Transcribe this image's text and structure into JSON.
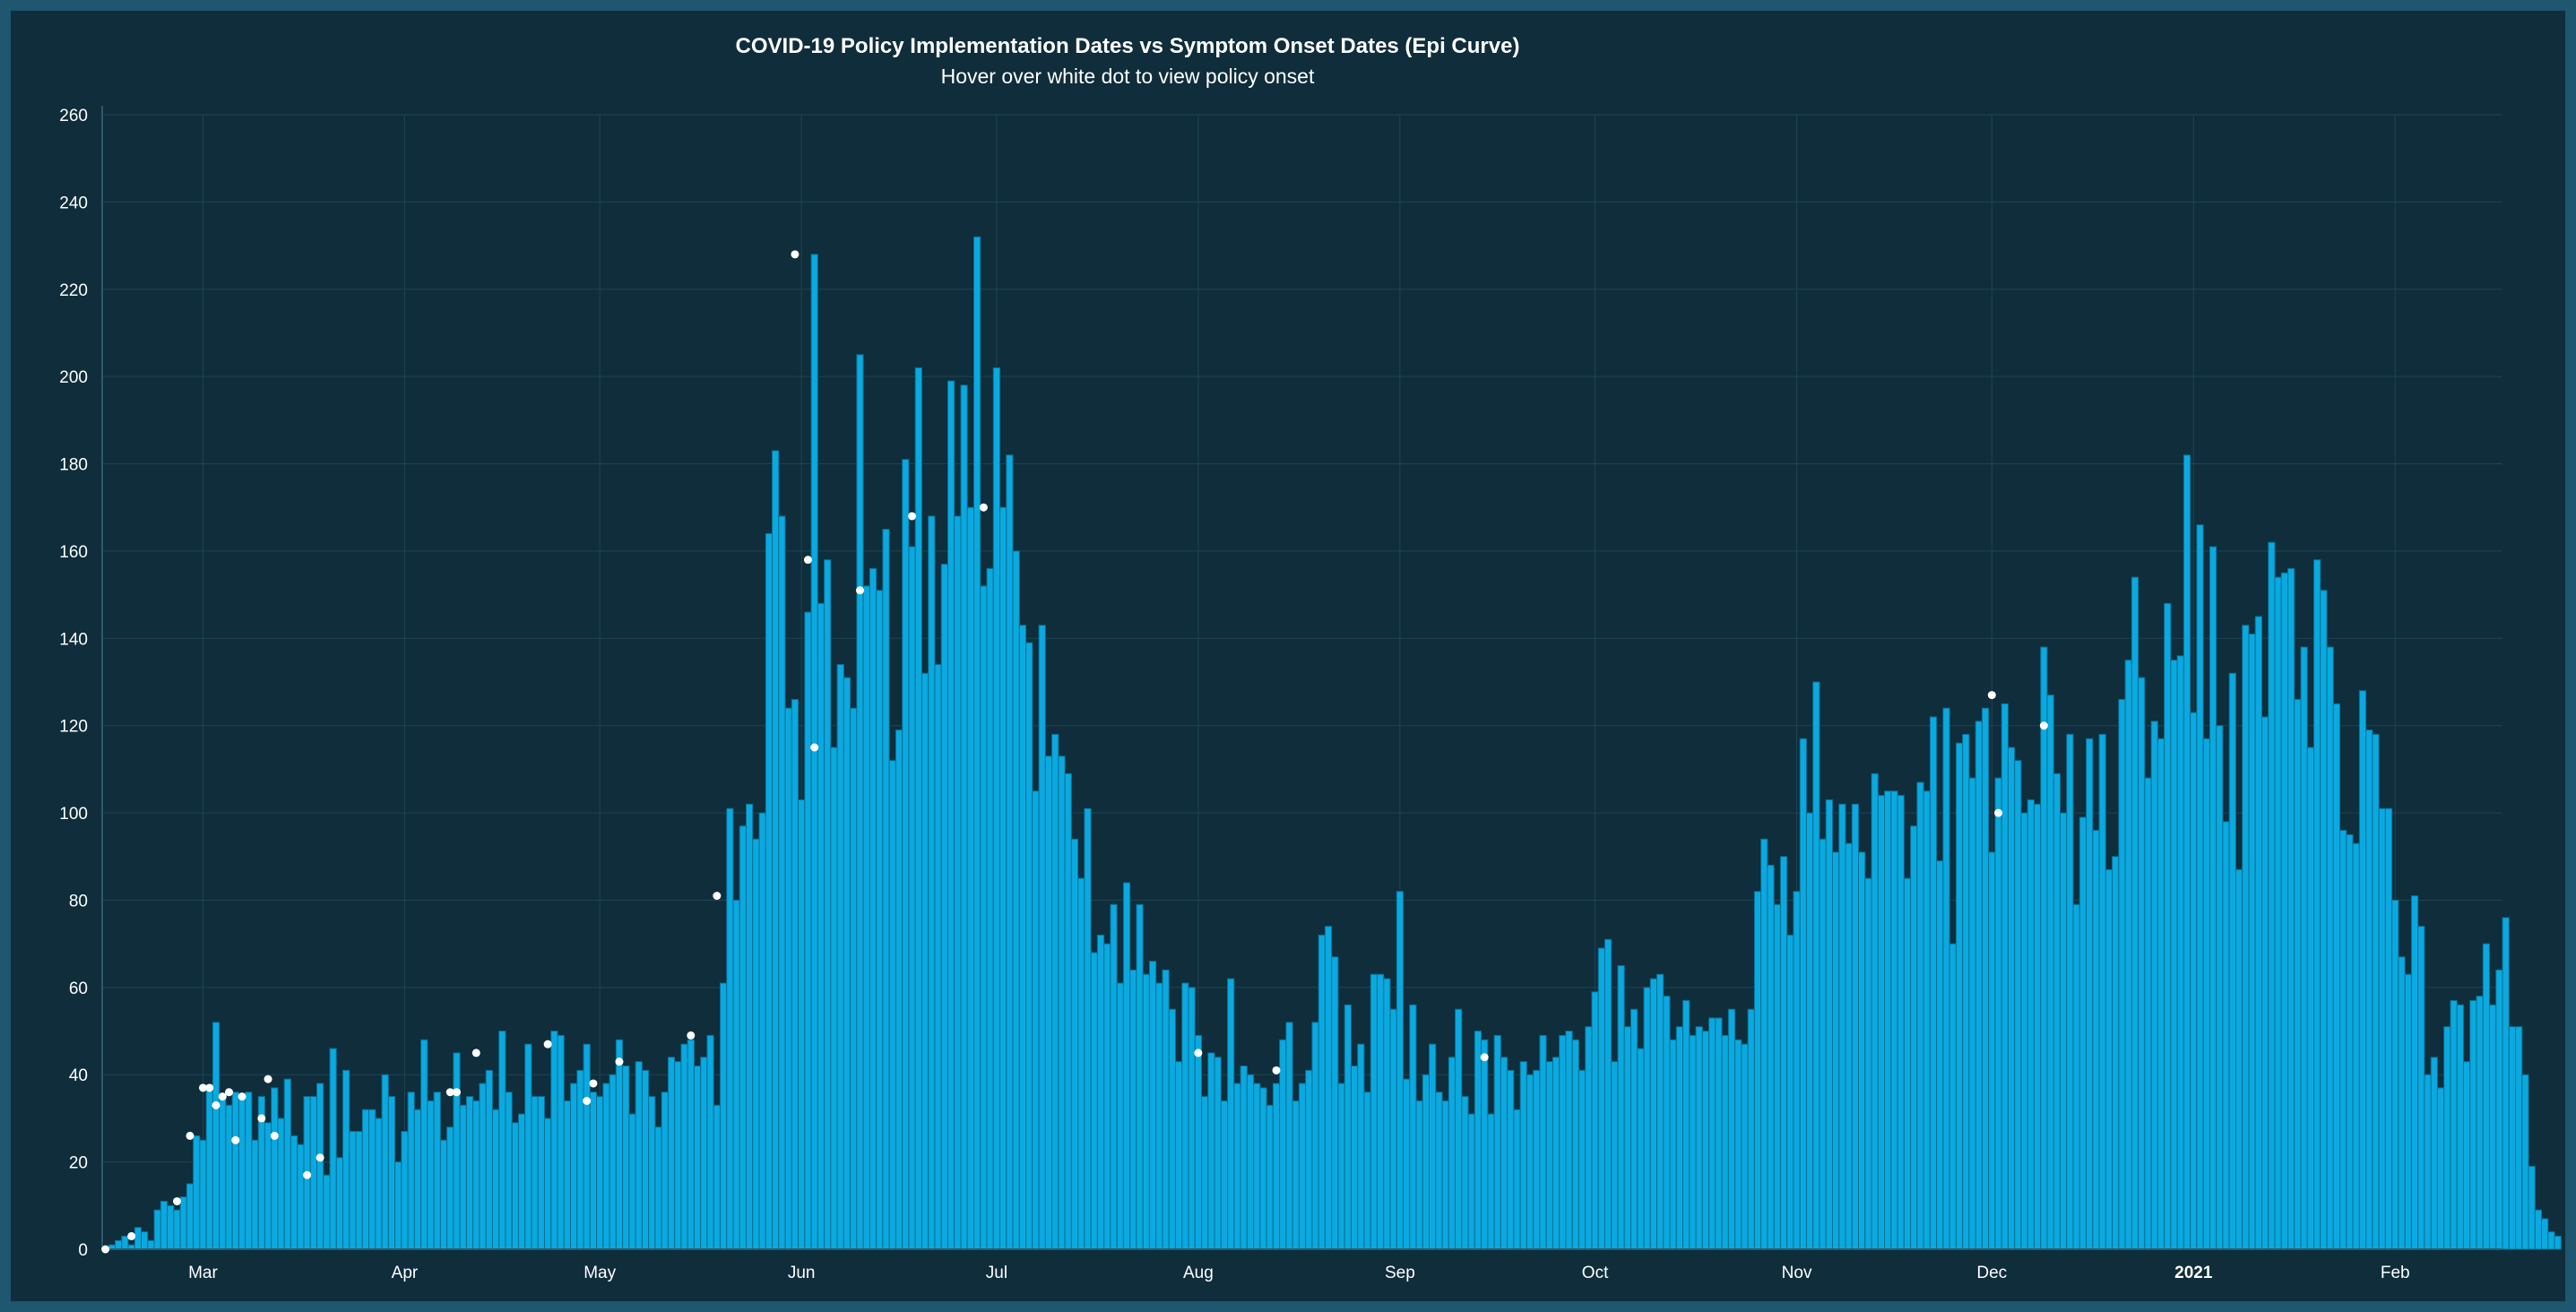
{
  "chart_data": {
    "type": "bar",
    "title": "COVID-19 Policy Implementation Dates vs Symptom Onset Dates (Epi Curve)",
    "subtitle": "Hover over white dot to view policy onset",
    "xlabel": "",
    "ylabel": "",
    "ylim": [
      0,
      260
    ],
    "yticks": [
      0,
      20,
      40,
      60,
      80,
      100,
      120,
      140,
      160,
      180,
      200,
      220,
      240,
      260
    ],
    "grid": true,
    "legend": "none",
    "x_start": "2020-02-15",
    "x_end": "2021-02-18",
    "x_tick_labels": [
      {
        "date": "2020-03-01",
        "label": "Mar",
        "bold": false
      },
      {
        "date": "2020-04-01",
        "label": "Apr",
        "bold": false
      },
      {
        "date": "2020-05-01",
        "label": "May",
        "bold": false
      },
      {
        "date": "2020-06-01",
        "label": "Jun",
        "bold": false
      },
      {
        "date": "2020-07-01",
        "label": "Jul",
        "bold": false
      },
      {
        "date": "2020-08-01",
        "label": "Aug",
        "bold": false
      },
      {
        "date": "2020-09-01",
        "label": "Sep",
        "bold": false
      },
      {
        "date": "2020-10-01",
        "label": "Oct",
        "bold": false
      },
      {
        "date": "2020-11-01",
        "label": "Nov",
        "bold": false
      },
      {
        "date": "2020-12-01",
        "label": "Dec",
        "bold": false
      },
      {
        "date": "2021-01-01",
        "label": "2021",
        "bold": true
      },
      {
        "date": "2021-02-01",
        "label": "Feb",
        "bold": false
      }
    ],
    "bar_color": "#0aa9df",
    "bar_edge_color": "#0a6f95",
    "dot_color": "#ffffff",
    "series": [
      {
        "values": [
          0,
          1,
          2,
          3,
          1,
          5,
          4,
          2,
          9,
          11,
          10,
          9,
          12,
          15,
          26,
          25,
          37,
          52,
          35,
          33,
          36,
          35,
          36,
          25,
          35,
          29,
          37,
          30,
          39,
          26,
          24,
          35,
          35,
          38,
          17,
          46,
          21,
          41,
          27,
          27,
          32,
          32,
          30,
          40,
          35,
          20,
          27,
          36,
          32,
          48,
          34,
          36,
          25,
          28,
          45,
          33,
          35,
          34,
          38,
          41,
          32,
          50,
          36,
          29,
          31,
          47,
          35,
          35,
          30,
          50,
          49,
          34,
          38,
          41,
          47,
          36,
          35,
          38,
          40,
          48,
          42,
          31,
          43,
          41,
          35,
          28,
          36,
          44,
          43,
          47,
          48,
          42,
          44,
          49,
          33,
          61,
          101,
          80,
          97,
          102,
          94,
          100,
          164,
          183,
          168,
          124,
          126,
          103,
          146,
          228,
          148,
          158,
          115,
          134,
          131,
          124,
          205,
          152,
          156,
          151,
          165,
          112,
          119,
          181,
          161,
          202,
          132,
          168,
          134,
          157,
          199,
          168,
          198,
          170,
          232,
          152,
          156,
          202,
          170,
          182,
          160,
          143,
          139,
          105,
          143,
          113,
          118,
          113,
          109,
          94,
          85,
          101,
          68,
          72,
          70,
          79,
          61,
          84,
          64,
          79,
          63,
          66,
          61,
          64,
          55,
          43,
          61,
          60,
          49,
          35,
          45,
          44,
          34,
          62,
          38,
          42,
          40,
          38,
          37,
          33,
          38,
          48,
          52,
          34,
          38,
          41,
          52,
          72,
          74,
          67,
          38,
          56,
          42,
          47,
          36,
          63,
          63,
          62,
          55,
          82,
          39,
          56,
          34,
          40,
          47,
          36,
          34,
          44,
          55,
          35,
          31,
          50,
          48,
          31,
          49,
          44,
          41,
          32,
          43,
          40,
          41,
          49,
          43,
          44,
          49,
          50,
          48,
          41,
          51,
          59,
          69,
          71,
          43,
          65,
          51,
          55,
          46,
          60,
          62,
          63,
          58,
          48,
          51,
          57,
          49,
          51,
          50,
          53,
          53,
          49,
          55,
          48,
          47,
          55,
          82,
          94,
          88,
          79,
          90,
          72,
          82,
          117,
          100,
          130,
          94,
          103,
          91,
          102,
          93,
          102,
          91,
          85,
          109,
          104,
          105,
          105,
          104,
          85,
          97,
          107,
          105,
          122,
          89,
          124,
          70,
          116,
          118,
          108,
          121,
          124,
          91,
          108,
          125,
          115,
          112,
          100,
          103,
          102,
          138,
          127,
          109,
          100,
          118,
          79,
          99,
          117,
          96,
          118,
          87,
          90,
          126,
          135,
          154,
          131,
          108,
          121,
          117,
          148,
          135,
          136,
          182,
          123,
          166,
          117,
          161,
          120,
          98,
          132,
          87,
          143,
          141,
          145,
          122,
          162,
          154,
          155,
          156,
          126,
          138,
          115,
          158,
          151,
          138,
          125,
          96,
          95,
          93,
          128,
          119,
          118,
          101,
          101,
          80,
          67,
          63,
          81,
          74,
          40,
          44,
          37,
          51,
          57,
          56,
          43,
          57,
          58,
          70,
          56,
          64,
          76,
          51,
          51,
          40,
          19,
          9,
          7,
          4,
          3
        ]
      }
    ],
    "policy_dots": [
      {
        "date": "2020-02-15",
        "value": 0
      },
      {
        "date": "2020-02-19",
        "value": 3
      },
      {
        "date": "2020-02-26",
        "value": 11
      },
      {
        "date": "2020-02-28",
        "value": 26
      },
      {
        "date": "2020-03-01",
        "value": 37
      },
      {
        "date": "2020-03-02",
        "value": 37
      },
      {
        "date": "2020-03-03",
        "value": 33
      },
      {
        "date": "2020-03-04",
        "value": 35
      },
      {
        "date": "2020-03-05",
        "value": 36
      },
      {
        "date": "2020-03-06",
        "value": 25
      },
      {
        "date": "2020-03-07",
        "value": 35
      },
      {
        "date": "2020-03-10",
        "value": 30
      },
      {
        "date": "2020-03-11",
        "value": 39
      },
      {
        "date": "2020-03-12",
        "value": 26
      },
      {
        "date": "2020-03-17",
        "value": 17
      },
      {
        "date": "2020-03-19",
        "value": 21
      },
      {
        "date": "2020-04-08",
        "value": 36
      },
      {
        "date": "2020-04-09",
        "value": 36
      },
      {
        "date": "2020-04-12",
        "value": 45
      },
      {
        "date": "2020-04-23",
        "value": 47
      },
      {
        "date": "2020-04-29",
        "value": 34
      },
      {
        "date": "2020-04-30",
        "value": 38
      },
      {
        "date": "2020-05-04",
        "value": 43
      },
      {
        "date": "2020-05-15",
        "value": 49
      },
      {
        "date": "2020-05-19",
        "value": 81
      },
      {
        "date": "2020-05-31",
        "value": 228
      },
      {
        "date": "2020-06-02",
        "value": 158
      },
      {
        "date": "2020-06-03",
        "value": 115
      },
      {
        "date": "2020-06-10",
        "value": 151
      },
      {
        "date": "2020-06-18",
        "value": 168
      },
      {
        "date": "2020-06-29",
        "value": 170
      },
      {
        "date": "2020-08-01",
        "value": 45
      },
      {
        "date": "2020-08-13",
        "value": 41
      },
      {
        "date": "2020-09-14",
        "value": 44
      },
      {
        "date": "2020-12-01",
        "value": 127
      },
      {
        "date": "2020-12-02",
        "value": 100
      },
      {
        "date": "2020-12-09",
        "value": 120
      }
    ]
  }
}
